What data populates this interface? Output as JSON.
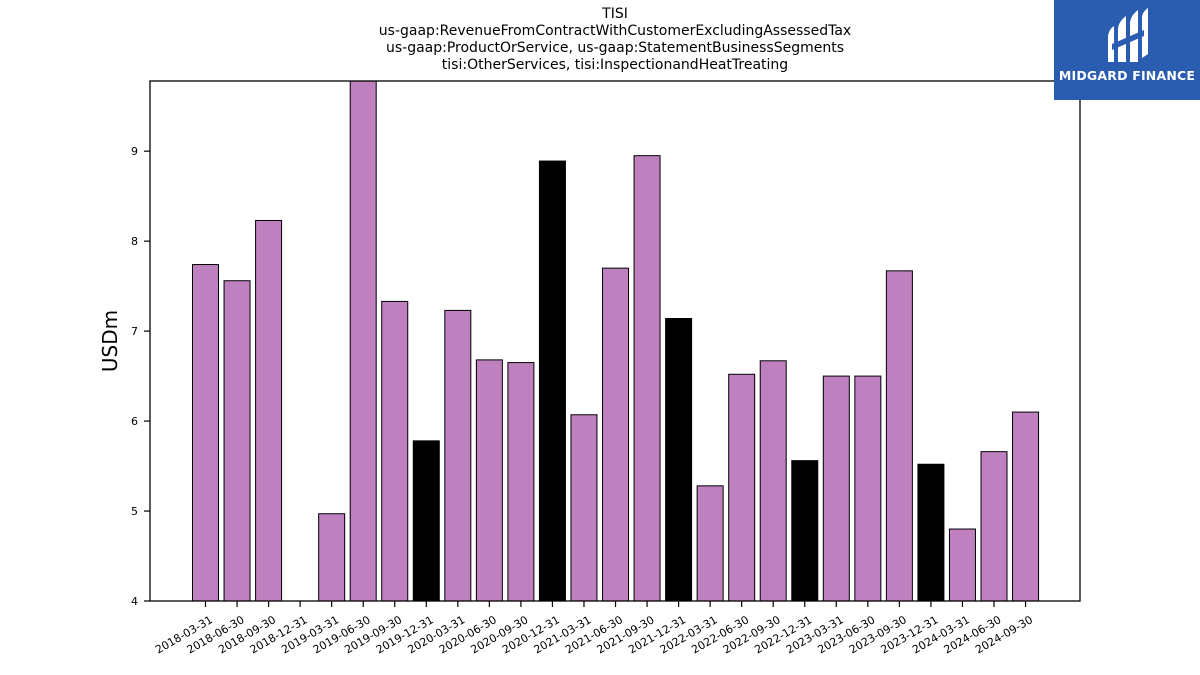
{
  "title_lines": [
    "TISI",
    "us-gaap:RevenueFromContractWithCustomerExcludingAssessedTax",
    "us-gaap:ProductOrService, us-gaap:StatementBusinessSegments",
    "tisi:OtherServices, tisi:InspectionandHeatTreating"
  ],
  "logo": {
    "text": "MIDGARD FINANCE",
    "background": "#2a5db0"
  },
  "chart_data": {
    "type": "bar",
    "ylabel": "USDm",
    "xlabel": "",
    "ylim": [
      4,
      9.78
    ],
    "yticks": [
      4,
      5,
      6,
      7,
      8,
      9
    ],
    "grid": false,
    "colors": {
      "regular": "#bf80bf",
      "year_end": "#000000"
    },
    "categories": [
      "2018-03-31",
      "2018-06-30",
      "2018-09-30",
      "2018-12-31",
      "2019-03-31",
      "2019-06-30",
      "2019-09-30",
      "2019-12-31",
      "2020-03-31",
      "2020-06-30",
      "2020-09-30",
      "2020-12-31",
      "2021-03-31",
      "2021-06-30",
      "2021-09-30",
      "2021-12-31",
      "2022-03-31",
      "2022-06-30",
      "2022-09-30",
      "2022-12-31",
      "2023-03-31",
      "2023-06-30",
      "2023-09-30",
      "2023-12-31",
      "2024-03-31",
      "2024-06-30",
      "2024-09-30"
    ],
    "values": [
      7.74,
      7.56,
      8.23,
      null,
      4.97,
      9.78,
      7.33,
      5.78,
      7.23,
      6.68,
      6.65,
      8.89,
      6.07,
      7.7,
      8.95,
      7.14,
      5.28,
      6.52,
      6.67,
      5.56,
      6.5,
      6.5,
      7.67,
      5.52,
      4.8,
      5.66,
      6.1
    ]
  }
}
